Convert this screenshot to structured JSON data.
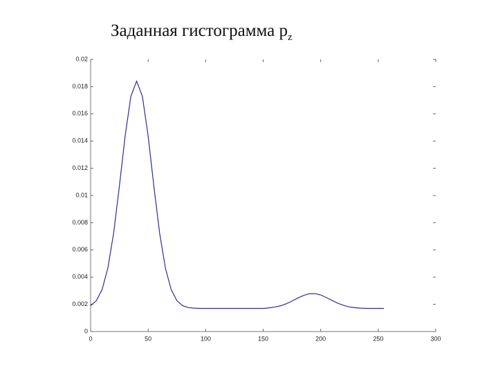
{
  "chart_data": {
    "type": "line",
    "title": "Заданная гистограмма p",
    "title_subscript": "z",
    "x": [
      0,
      5,
      10,
      15,
      20,
      25,
      30,
      35,
      40,
      45,
      50,
      55,
      60,
      65,
      70,
      75,
      80,
      85,
      90,
      95,
      100,
      105,
      110,
      115,
      120,
      125,
      130,
      135,
      140,
      145,
      150,
      155,
      160,
      165,
      170,
      175,
      180,
      185,
      190,
      195,
      200,
      205,
      210,
      215,
      220,
      225,
      230,
      235,
      240,
      245,
      250,
      255
    ],
    "series": [
      {
        "color": "#2b2b9a",
        "values": [
          0.0019,
          0.00227,
          0.00309,
          0.00467,
          0.00723,
          0.01067,
          0.01437,
          0.01729,
          0.0184,
          0.01729,
          0.01437,
          0.01067,
          0.00723,
          0.00467,
          0.00309,
          0.00227,
          0.0019,
          0.00176,
          0.00172,
          0.0017,
          0.0017,
          0.0017,
          0.0017,
          0.0017,
          0.0017,
          0.0017,
          0.0017,
          0.0017,
          0.0017,
          0.0017,
          0.0017,
          0.00174,
          0.0018,
          0.00189,
          0.00204,
          0.00224,
          0.00246,
          0.00265,
          0.00278,
          0.00279,
          0.00269,
          0.0025,
          0.00228,
          0.00208,
          0.00192,
          0.00181,
          0.00175,
          0.00172,
          0.0017,
          0.0017,
          0.0017,
          0.0017
        ]
      }
    ],
    "xlim": [
      0,
      300
    ],
    "xticks": [
      0,
      50,
      100,
      150,
      200,
      250,
      300
    ],
    "ylim": [
      0,
      0.02
    ],
    "yticks": [
      0,
      0.002,
      0.004,
      0.006,
      0.008,
      0.01,
      0.012,
      0.014,
      0.016,
      0.018,
      0.02
    ]
  }
}
